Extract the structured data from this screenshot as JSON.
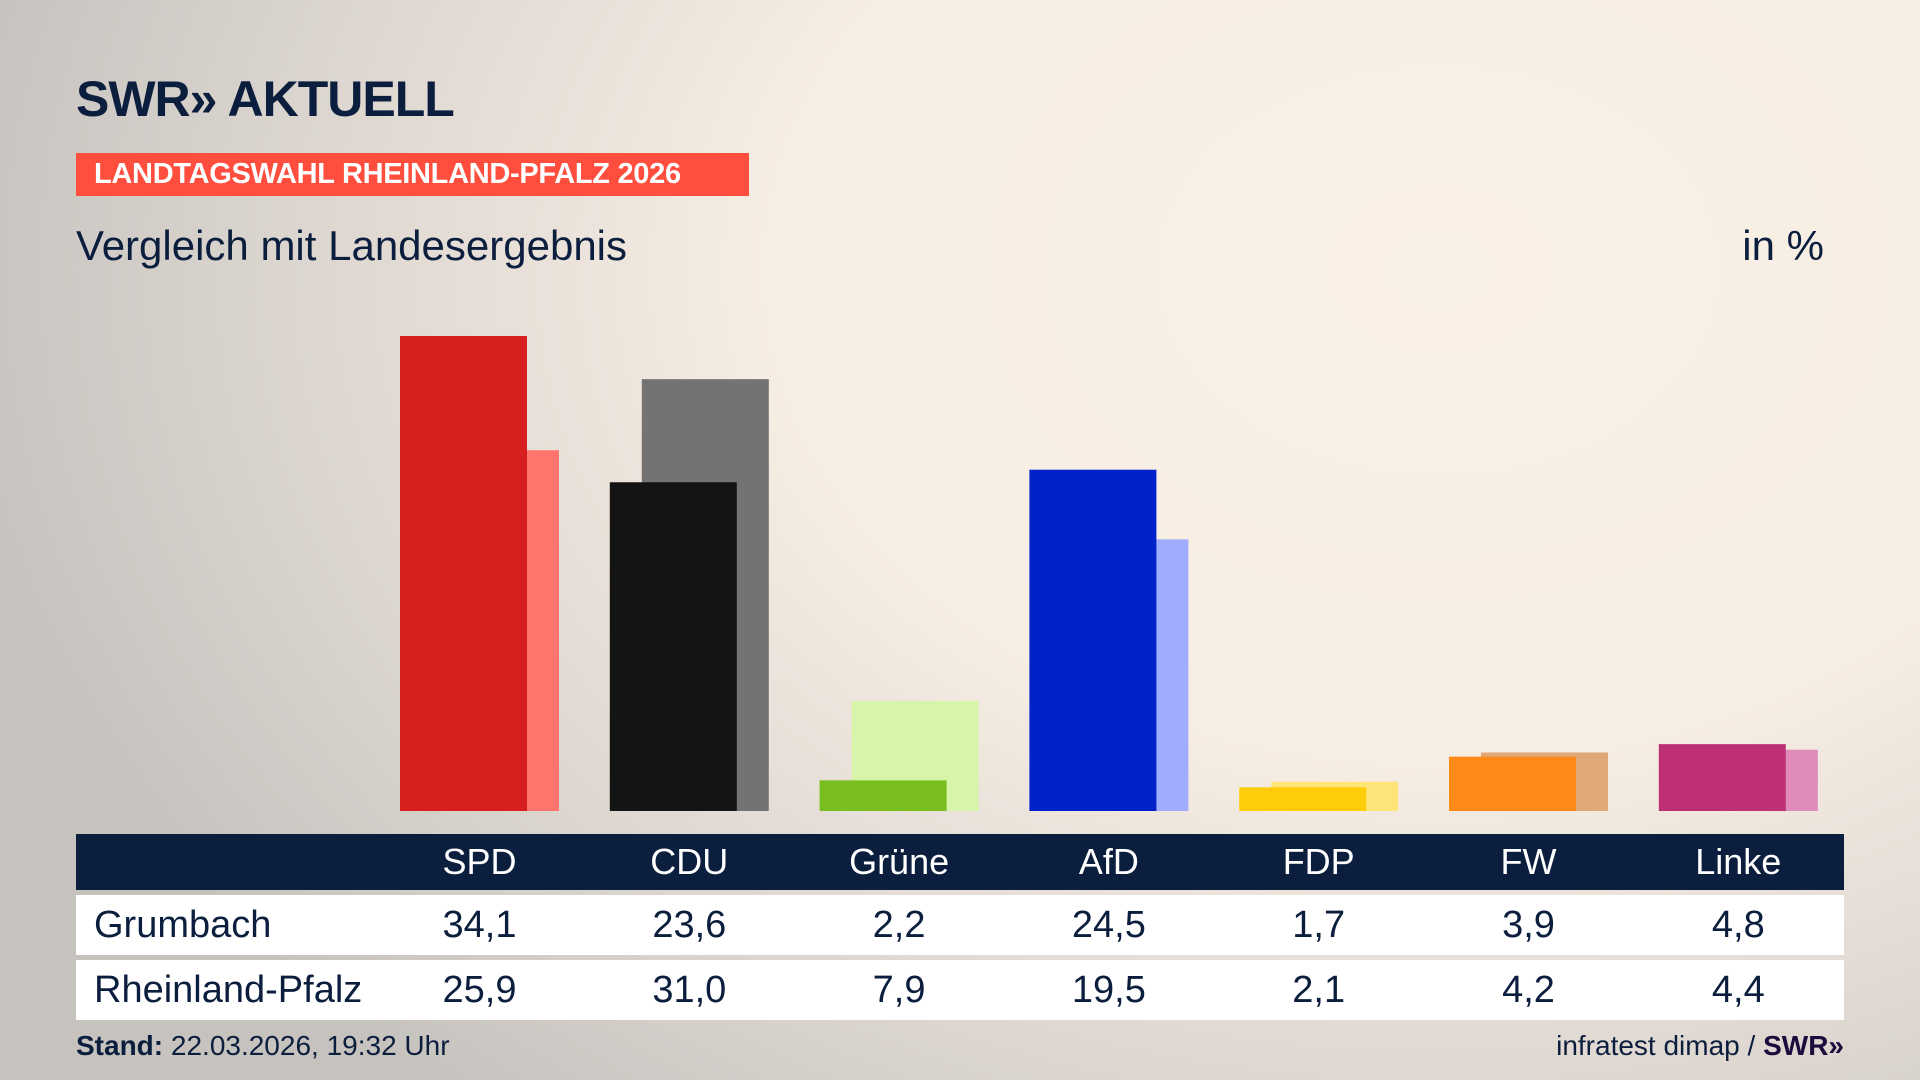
{
  "header": {
    "logo": "SWR» AKTUELL",
    "banner": "LANDTAGSWAHL RHEINLAND-PFALZ 2026",
    "subtitle": "Vergleich mit Landesergebnis",
    "unit": "in %"
  },
  "chart_data": {
    "type": "bar",
    "categories": [
      "SPD",
      "CDU",
      "Grüne",
      "AfD",
      "FDP",
      "FW",
      "Linke"
    ],
    "series": [
      {
        "name": "Grumbach",
        "values": [
          34.1,
          23.6,
          2.2,
          24.5,
          1.7,
          3.9,
          4.8
        ],
        "colors": [
          "#d71f1f",
          "#141414",
          "#78be1e",
          "#0022c8",
          "#ffcc0a",
          "#ff8a17",
          "#be3075"
        ]
      },
      {
        "name": "Rheinland-Pfalz",
        "values": [
          25.9,
          31.0,
          7.9,
          19.5,
          2.1,
          4.2,
          4.4
        ],
        "colors": [
          "#ff756d",
          "#737373",
          "#d6f5ab",
          "#a0adff",
          "#ffe47a",
          "#e0a878",
          "#e08ab8"
        ]
      }
    ],
    "ylim": [
      0,
      36
    ]
  },
  "table": {
    "headers": [
      "SPD",
      "CDU",
      "Grüne",
      "AfD",
      "FDP",
      "FW",
      "Linke"
    ],
    "rows": [
      {
        "label": "Grumbach",
        "values": [
          "34,1",
          "23,6",
          "2,2",
          "24,5",
          "1,7",
          "3,9",
          "4,8"
        ]
      },
      {
        "label": "Rheinland-Pfalz",
        "values": [
          "25,9",
          "31,0",
          "7,9",
          "19,5",
          "2,1",
          "4,2",
          "4,4"
        ]
      }
    ]
  },
  "footer": {
    "stand_label": "Stand:",
    "stand_value": " 22.03.2026, 19:32 Uhr",
    "source": "infratest dimap / ",
    "source_logo": "SWR»"
  },
  "colors": {
    "navy": "#0c1e3e",
    "banner": "#ff4e3e"
  }
}
